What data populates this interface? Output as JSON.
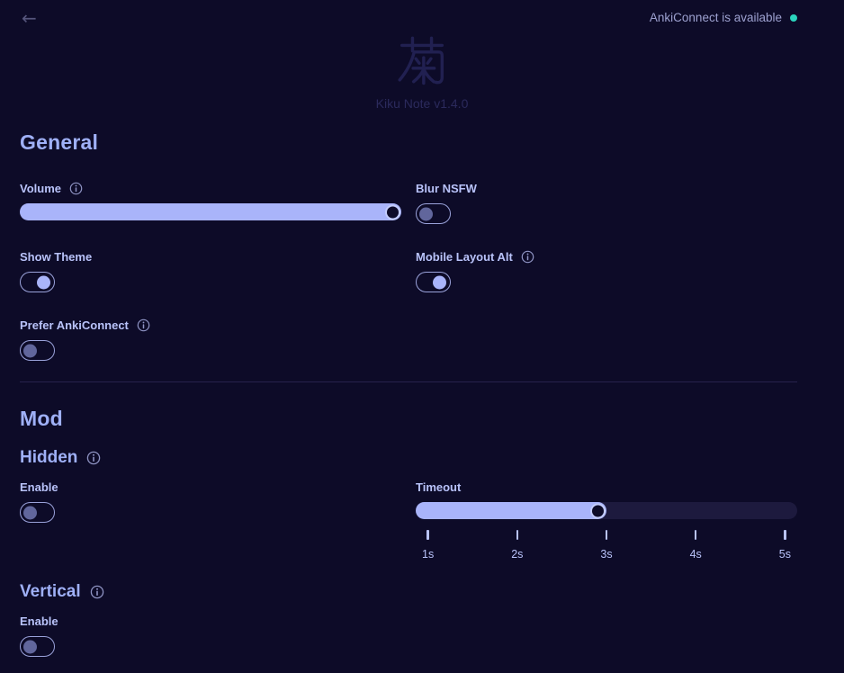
{
  "topbar": {
    "back_icon": "←",
    "status_text": "AnkiConnect is available"
  },
  "logo": {
    "kanji": "菊",
    "caption": "Kiku Note v1.4.0"
  },
  "general": {
    "title": "General",
    "volume": {
      "label": "Volume",
      "has_info": true,
      "value_percent": 100
    },
    "blur_nsfw": {
      "label": "Blur NSFW",
      "enabled": false
    },
    "show_theme": {
      "label": "Show Theme",
      "enabled": true
    },
    "mobile_layout_alt": {
      "label": "Mobile Layout Alt",
      "has_info": true,
      "enabled": true
    },
    "prefer_ankiconnect": {
      "label": "Prefer AnkiConnect",
      "has_info": true,
      "enabled": false
    }
  },
  "mod": {
    "title": "Mod",
    "hidden": {
      "title": "Hidden",
      "has_info": true,
      "enable": {
        "label": "Enable",
        "enabled": false
      },
      "timeout": {
        "label": "Timeout",
        "value": "3s",
        "value_percent": 50,
        "ticks": [
          "1s",
          "2s",
          "3s",
          "4s",
          "5s"
        ]
      }
    },
    "vertical": {
      "title": "Vertical",
      "has_info": true,
      "enable": {
        "label": "Enable",
        "enabled": false
      }
    }
  },
  "colors": {
    "background": "#0d0b28",
    "accent": "#a9b4fa",
    "heading": "#9fb0f7",
    "status_dot": "#2bd4bd"
  }
}
